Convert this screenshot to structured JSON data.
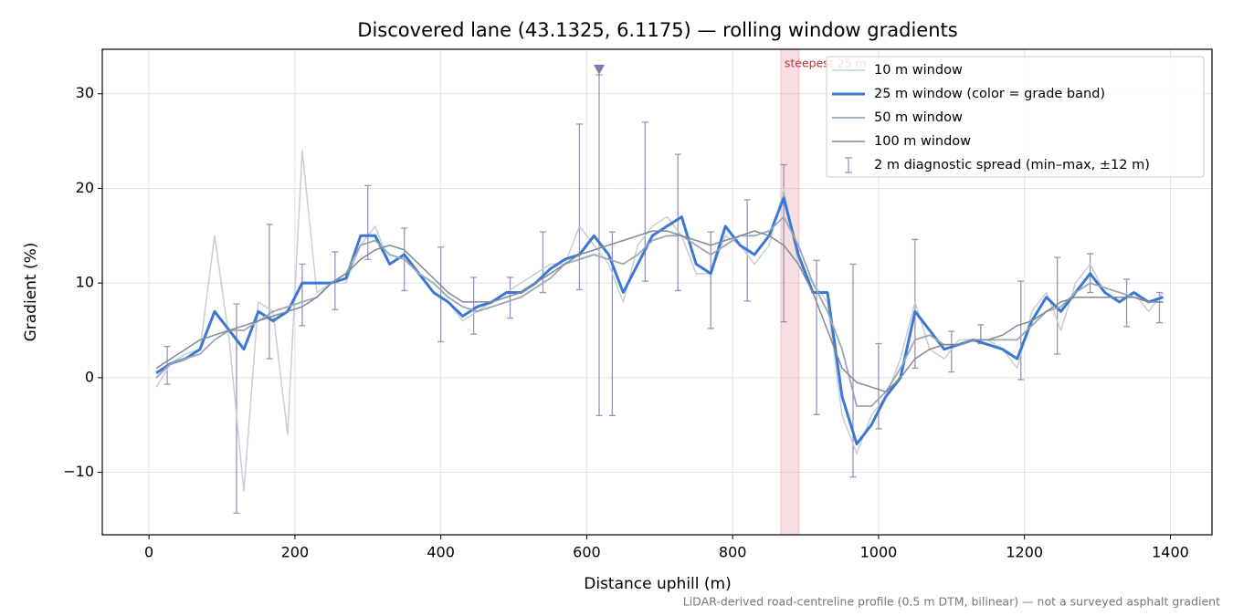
{
  "chart_data": {
    "type": "line",
    "title": "Discovered lane (43.1325, 6.1175) — rolling window gradients",
    "xlabel": "Distance uphill (m)",
    "ylabel": "Gradient (%)",
    "footnote": "LiDAR-derived road-centreline profile (0.5 m DTM, bilinear) — not a surveyed asphalt gradient",
    "xlim": [
      -64,
      1457
    ],
    "ylim": [
      -16.6,
      34.7
    ],
    "xticks": [
      0,
      200,
      400,
      600,
      800,
      1000,
      1200,
      1400
    ],
    "yticks": [
      {
        "value": -10,
        "label": "−10"
      },
      0,
      10,
      20,
      30
    ],
    "grid": true,
    "legend": "upper right",
    "x": [
      10,
      30,
      50,
      70,
      90,
      110,
      130,
      150,
      170,
      190,
      210,
      230,
      250,
      270,
      290,
      310,
      330,
      350,
      370,
      390,
      410,
      430,
      450,
      470,
      490,
      510,
      530,
      550,
      570,
      590,
      610,
      630,
      650,
      670,
      690,
      710,
      730,
      750,
      770,
      790,
      810,
      830,
      850,
      870,
      890,
      910,
      930,
      950,
      970,
      990,
      1010,
      1030,
      1050,
      1070,
      1090,
      1110,
      1130,
      1150,
      1170,
      1190,
      1210,
      1230,
      1250,
      1270,
      1290,
      1310,
      1330,
      1350,
      1370,
      1390
    ],
    "series": [
      {
        "name": "10 m window",
        "color": "#c5ced6",
        "width": 1.5,
        "values": [
          -1,
          1.5,
          2.5,
          3,
          15,
          4,
          -12,
          8,
          7,
          -6,
          24,
          9,
          10,
          10,
          14,
          16,
          12,
          13,
          11,
          9,
          8,
          6,
          7,
          8,
          9,
          10,
          11,
          12,
          12,
          16,
          14,
          12,
          8,
          14,
          16,
          17,
          15,
          11,
          11,
          15,
          14,
          12,
          14,
          20,
          12,
          10,
          8,
          -4,
          -8,
          -4,
          -2,
          2,
          8,
          3,
          2,
          4,
          4,
          4,
          3,
          1,
          7,
          9,
          5,
          10,
          12,
          9,
          8,
          9,
          7,
          9
        ]
      },
      {
        "name": "25 m window (color = grade band)",
        "color": "#3a78d4",
        "width": 3,
        "values": [
          0.5,
          1.5,
          2,
          3,
          7,
          5,
          3,
          7,
          6,
          7,
          10,
          10,
          10,
          10.5,
          15,
          15,
          12,
          13,
          11,
          9,
          8,
          6.5,
          7.5,
          8,
          9,
          9,
          10,
          11.5,
          12.5,
          13,
          15,
          13,
          9,
          12,
          15,
          16,
          17,
          12,
          11,
          16,
          14,
          13,
          15,
          19,
          13,
          9,
          9,
          -2,
          -7,
          -5,
          -2,
          0,
          7,
          5,
          3,
          3.5,
          4,
          3.5,
          3,
          2,
          6,
          8.5,
          7,
          9,
          11,
          9,
          8,
          9,
          8,
          8.5
        ]
      },
      {
        "name": "50 m window",
        "color": "#9aa7b5",
        "width": 1.8,
        "values": [
          0,
          1.5,
          2,
          2.5,
          4,
          5,
          5,
          6,
          7,
          7.5,
          8,
          8.5,
          10,
          11,
          14,
          14.5,
          13,
          12.5,
          11,
          10,
          8.5,
          7.5,
          7,
          7.5,
          8,
          8.5,
          9.5,
          10.5,
          12,
          12.5,
          13,
          12.5,
          12,
          13,
          14.5,
          15,
          15,
          14,
          13,
          14,
          15,
          15,
          15.5,
          17,
          14,
          10,
          7,
          3,
          -3,
          -3,
          -1.5,
          1,
          4,
          4.5,
          3.5,
          3.5,
          4,
          4,
          4,
          4,
          5.5,
          7,
          7.5,
          9,
          10,
          9.5,
          9,
          8.5,
          8,
          8
        ]
      },
      {
        "name": "100 m window",
        "color": "#7f8994",
        "width": 1.5,
        "values": [
          1,
          2,
          3,
          4,
          4.5,
          5,
          5.5,
          6,
          6.5,
          7,
          7.5,
          8.5,
          10,
          11,
          12.5,
          13.5,
          14,
          13.5,
          12,
          10.5,
          9,
          8,
          8,
          8,
          8.5,
          9,
          10,
          11,
          12,
          13,
          13.5,
          14,
          14.5,
          15,
          15.5,
          15.5,
          15,
          14.5,
          14,
          14.5,
          15,
          15.5,
          15,
          14,
          12,
          9,
          5,
          1,
          -0.5,
          -1,
          -1.5,
          0,
          2,
          3,
          3.5,
          3.5,
          4,
          4,
          4.5,
          5.5,
          6,
          7,
          8,
          8.5,
          8.5,
          8.5,
          8.5,
          8.5,
          8,
          8
        ]
      }
    ],
    "errorbars": {
      "name": "2 m diagnostic spread (min–max, ±12 m)",
      "color": "#9b92b8",
      "x": [
        25,
        120,
        165,
        210,
        255,
        300,
        350,
        400,
        445,
        495,
        540,
        590,
        617,
        635,
        680,
        725,
        770,
        820,
        870,
        915,
        965,
        1000,
        1050,
        1100,
        1140,
        1195,
        1245,
        1290,
        1340,
        1385
      ],
      "min": [
        -0.7,
        -14.3,
        2,
        5.5,
        7.2,
        12.5,
        9.2,
        3.8,
        4.6,
        6.3,
        9,
        9.3,
        -4,
        -4,
        10.2,
        9.2,
        5.2,
        8.1,
        5.9,
        -3.9,
        -10.5,
        -5.4,
        1,
        0.6,
        3.6,
        -0.2,
        2.5,
        9,
        5.4,
        5.8
      ],
      "max": [
        3.3,
        7.8,
        16.2,
        12,
        13.3,
        20.3,
        15.8,
        13.8,
        10.6,
        10.6,
        15.4,
        26.8,
        32,
        15.4,
        27,
        23.6,
        15.4,
        18.8,
        22.5,
        12.4,
        12,
        3.6,
        14.6,
        4.9,
        5.6,
        10.2,
        12.7,
        13.1,
        10.4,
        9
      ]
    },
    "span": {
      "x0": 866,
      "x1": 891,
      "label": "steepest 25 m",
      "color": "#e8a0a8"
    },
    "marker": {
      "x": 617,
      "y": 32.5,
      "color": "#8a78a8"
    }
  }
}
